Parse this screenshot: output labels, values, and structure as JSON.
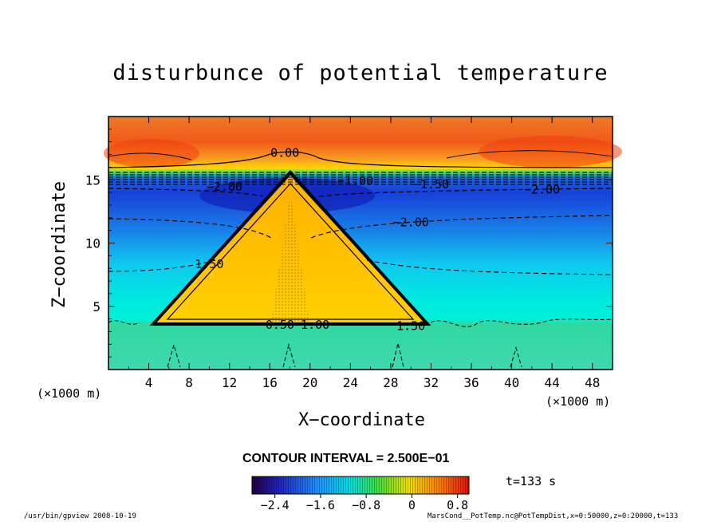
{
  "chart_data": {
    "type": "heatmap",
    "title": "disturbunce of potential temperature",
    "xlabel": "X−coordinate",
    "ylabel": "Z−coordinate",
    "x_units": "(×1000 m)",
    "y_units": "(×1000 m)",
    "xlim": [
      0,
      50
    ],
    "ylim": [
      0,
      20
    ],
    "x_ticks": [
      4,
      8,
      12,
      16,
      20,
      24,
      28,
      32,
      36,
      40,
      44,
      48
    ],
    "y_ticks": [
      5,
      10,
      15
    ],
    "grid": false,
    "contour_interval_text": "CONTOUR INTERVAL = 2.500E−01",
    "colorbar": {
      "min": -2.8,
      "max": 1.0,
      "ticks": [
        -2.4,
        -1.6,
        -0.8,
        0,
        0.8
      ],
      "tick_labels": [
        "−2.4",
        "−1.6",
        "−0.8",
        "0",
        "0.8"
      ]
    },
    "contour_labels": [
      {
        "text": "0.00",
        "x": 17.5,
        "z": 17.2
      },
      {
        "text": "−2.00",
        "x": 11.5,
        "z": 14.5
      },
      {
        "text": "−1.00",
        "x": 24.5,
        "z": 15.0
      },
      {
        "text": "−1.50",
        "x": 32.0,
        "z": 14.7
      },
      {
        "text": "−2.00",
        "x": 43.0,
        "z": 14.3
      },
      {
        "text": "−2.00",
        "x": 30.0,
        "z": 11.7
      },
      {
        "text": "1.50",
        "x": 10.0,
        "z": 8.4
      },
      {
        "text": "0.50",
        "x": 17.0,
        "z": 3.6
      },
      {
        "text": "1.00",
        "x": 20.5,
        "z": 3.6
      },
      {
        "text": "1.50",
        "x": 30.0,
        "z": 3.5
      }
    ],
    "time_text": "t=133 s"
  },
  "footer": {
    "left": "/usr/bin/gpview   2008-10-19",
    "right": "MarsCond__PotTemp.nc@PotTempDist,x=0:50000,z=0:20000,t=133"
  },
  "colors": {
    "warm_top": "#f06018",
    "yellow": "#ffd000",
    "cold_min": "#1030d0",
    "cyan": "#00e8e0",
    "green_surface": "#30d8a0"
  }
}
